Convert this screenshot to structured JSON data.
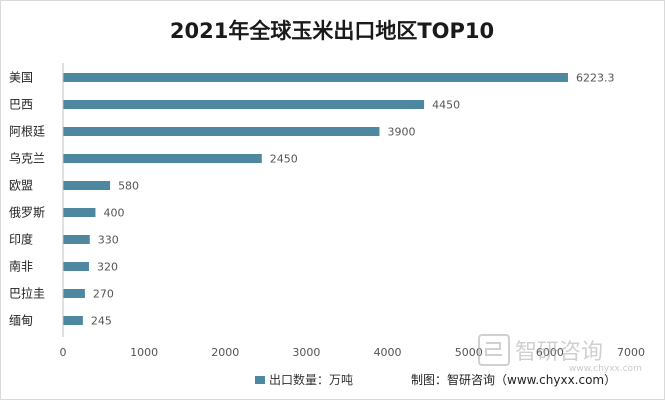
{
  "chart_data": {
    "type": "bar",
    "orientation": "horizontal",
    "title": "2021年全球玉米出口地区TOP10",
    "categories": [
      "美国",
      "巴西",
      "阿根廷",
      "乌克兰",
      "欧盟",
      "俄罗斯",
      "印度",
      "南非",
      "巴拉圭",
      "缅甸"
    ],
    "series": [
      {
        "name": "出口数量：万吨",
        "values": [
          6223.3,
          4450,
          3900,
          2450,
          580,
          400,
          330,
          320,
          270,
          245
        ]
      }
    ],
    "value_labels": [
      "6223.3",
      "4450",
      "3900",
      "2450",
      "580",
      "400",
      "330",
      "320",
      "270",
      "245"
    ],
    "xlim": [
      0,
      7000
    ],
    "x_ticks": [
      0,
      1000,
      2000,
      3000,
      4000,
      5000,
      6000,
      7000
    ],
    "x_tick_labels": [
      "0",
      "1000",
      "2000",
      "3000",
      "4000",
      "5000",
      "6000",
      "7000"
    ],
    "grid": false,
    "legend_position": "bottom-left",
    "bar_color": "#4e87a0",
    "source_credit": "制图：智研咨询（www.chyxx.com）",
    "watermark": {
      "text": "智研咨询",
      "url": "www.chyxx.com"
    }
  }
}
